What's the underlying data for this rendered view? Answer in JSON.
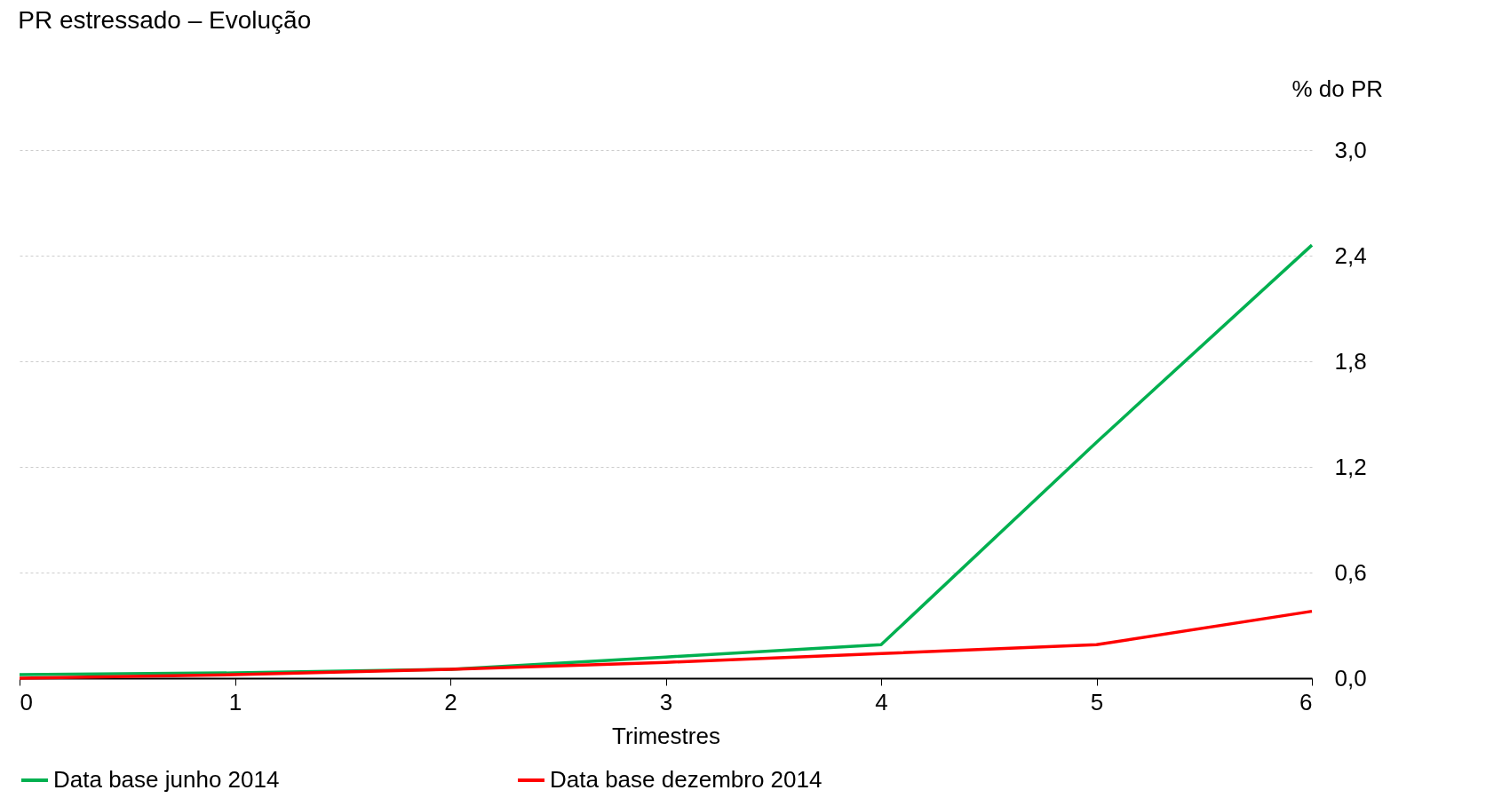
{
  "chart_data": {
    "type": "line",
    "title": "PR estressado – Evolução",
    "xlabel": "Trimestres",
    "ylabel": "% do PR",
    "x": [
      0,
      1,
      2,
      3,
      4,
      5,
      6
    ],
    "series": [
      {
        "name": "Data base junho 2014",
        "color": "#00b050",
        "values": [
          0.02,
          0.03,
          0.05,
          0.12,
          0.19,
          1.34,
          2.46
        ]
      },
      {
        "name": "Data base dezembro 2014",
        "color": "#ff0000",
        "values": [
          0.0,
          0.02,
          0.05,
          0.09,
          0.14,
          0.19,
          0.38
        ]
      }
    ],
    "xlim": [
      0,
      6
    ],
    "xticks": [
      0,
      1,
      2,
      3,
      4,
      5,
      6
    ],
    "ylim": [
      0,
      3.0
    ],
    "yticks": [
      {
        "value": 0,
        "label": "0,0"
      },
      {
        "value": 0.6,
        "label": "0,6"
      },
      {
        "value": 1.2,
        "label": "1,2"
      },
      {
        "value": 1.8,
        "label": "1,8"
      },
      {
        "value": 2.4,
        "label": "2,4"
      },
      {
        "value": 3.0,
        "label": "3,0"
      }
    ],
    "grid": "y",
    "legend": "bottom",
    "marker": "none",
    "line_style": "solid"
  }
}
